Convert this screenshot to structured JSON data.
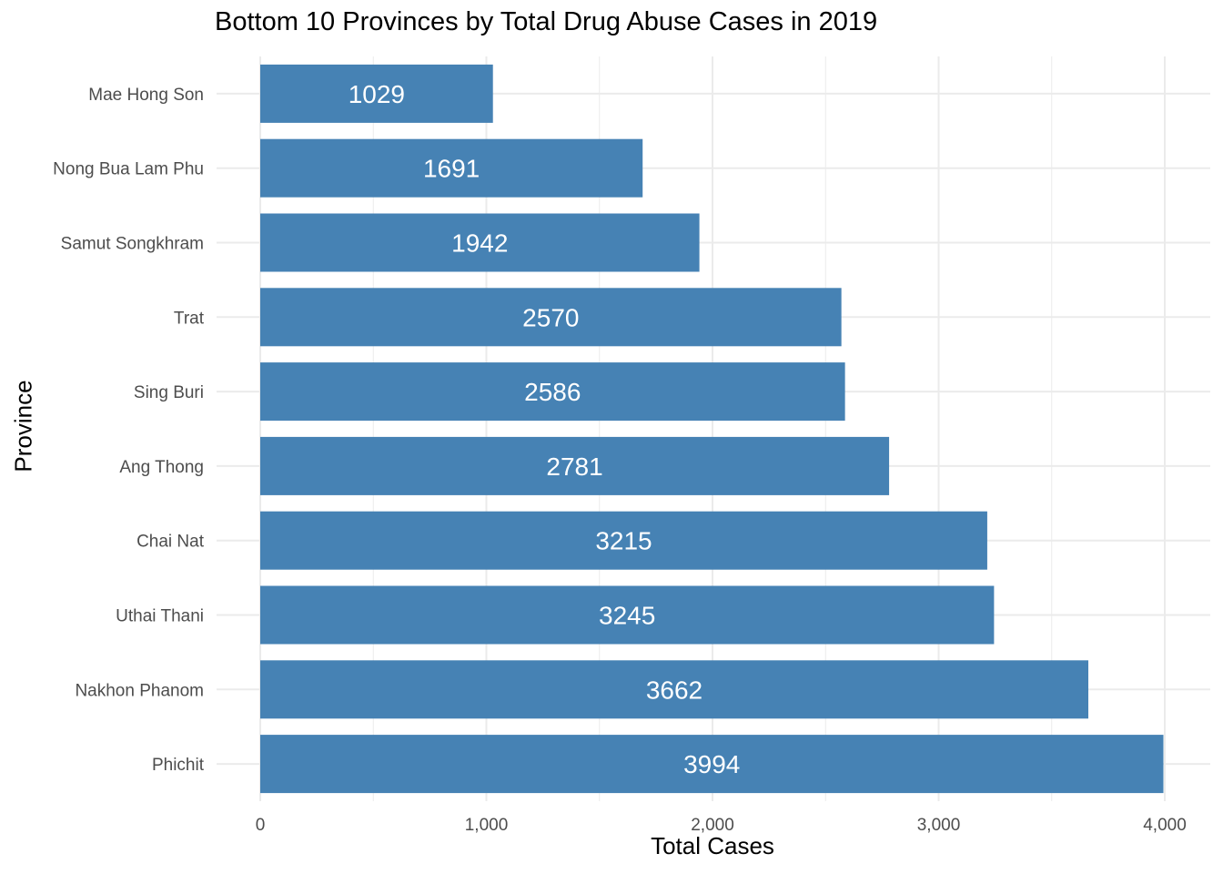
{
  "chart_data": {
    "type": "bar",
    "orientation": "horizontal",
    "title": "Bottom 10 Provinces by Total Drug Abuse Cases in 2019",
    "xlabel": "Total Cases",
    "ylabel": "Province",
    "categories": [
      "Mae Hong Son",
      "Nong Bua Lam Phu",
      "Samut Songkhram",
      "Trat",
      "Sing Buri",
      "Ang Thong",
      "Chai Nat",
      "Uthai Thani",
      "Nakhon Phanom",
      "Phichit"
    ],
    "values": [
      1029,
      1691,
      1942,
      2570,
      2586,
      2781,
      3215,
      3245,
      3662,
      3994
    ],
    "data_labels": [
      "1029",
      "1691",
      "1942",
      "2570",
      "2586",
      "2781",
      "3215",
      "3245",
      "3662",
      "3994"
    ],
    "xlim": [
      0,
      4200
    ],
    "x_ticks": [
      0,
      1000,
      2000,
      3000,
      4000
    ],
    "x_tick_labels": [
      "0",
      "1,000",
      "2,000",
      "3,000",
      "4,000"
    ],
    "grid": true,
    "legend": "none",
    "bar_color": "#4682B4",
    "label_color": "#FFFFFF",
    "grid_color": "#EBEBEB",
    "axis_text_color": "#4D4D4D"
  }
}
